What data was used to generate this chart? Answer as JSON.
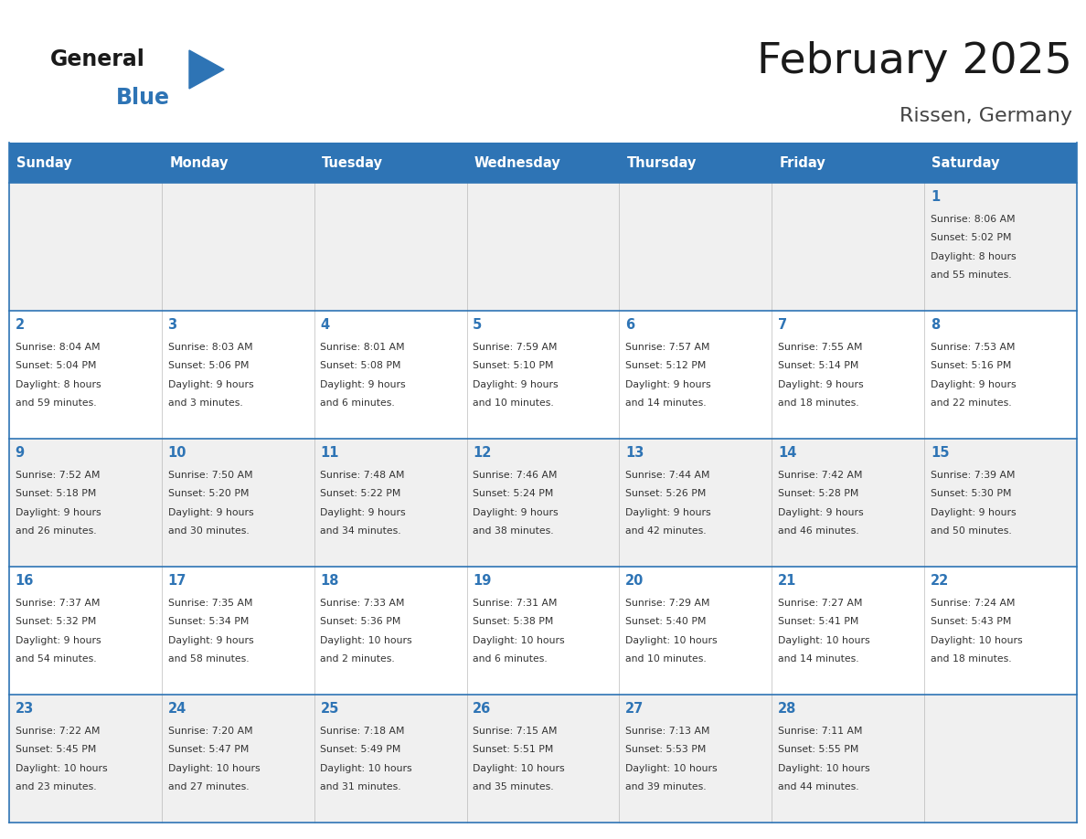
{
  "title": "February 2025",
  "subtitle": "Rissen, Germany",
  "days_of_week": [
    "Sunday",
    "Monday",
    "Tuesday",
    "Wednesday",
    "Thursday",
    "Friday",
    "Saturday"
  ],
  "header_bg": "#2E74B5",
  "header_text": "#FFFFFF",
  "row_bg_odd": "#F0F0F0",
  "row_bg_even": "#FFFFFF",
  "day_number_color": "#2E74B5",
  "text_color": "#333333",
  "border_color": "#2E74B5",
  "cell_divider": "#AAAAAA",
  "calendar_data": [
    [
      null,
      null,
      null,
      null,
      null,
      null,
      {
        "day": "1",
        "sunrise": "8:06 AM",
        "sunset": "5:02 PM",
        "daylight": "8 hours\nand 55 minutes."
      }
    ],
    [
      {
        "day": "2",
        "sunrise": "8:04 AM",
        "sunset": "5:04 PM",
        "daylight": "8 hours\nand 59 minutes."
      },
      {
        "day": "3",
        "sunrise": "8:03 AM",
        "sunset": "5:06 PM",
        "daylight": "9 hours\nand 3 minutes."
      },
      {
        "day": "4",
        "sunrise": "8:01 AM",
        "sunset": "5:08 PM",
        "daylight": "9 hours\nand 6 minutes."
      },
      {
        "day": "5",
        "sunrise": "7:59 AM",
        "sunset": "5:10 PM",
        "daylight": "9 hours\nand 10 minutes."
      },
      {
        "day": "6",
        "sunrise": "7:57 AM",
        "sunset": "5:12 PM",
        "daylight": "9 hours\nand 14 minutes."
      },
      {
        "day": "7",
        "sunrise": "7:55 AM",
        "sunset": "5:14 PM",
        "daylight": "9 hours\nand 18 minutes."
      },
      {
        "day": "8",
        "sunrise": "7:53 AM",
        "sunset": "5:16 PM",
        "daylight": "9 hours\nand 22 minutes."
      }
    ],
    [
      {
        "day": "9",
        "sunrise": "7:52 AM",
        "sunset": "5:18 PM",
        "daylight": "9 hours\nand 26 minutes."
      },
      {
        "day": "10",
        "sunrise": "7:50 AM",
        "sunset": "5:20 PM",
        "daylight": "9 hours\nand 30 minutes."
      },
      {
        "day": "11",
        "sunrise": "7:48 AM",
        "sunset": "5:22 PM",
        "daylight": "9 hours\nand 34 minutes."
      },
      {
        "day": "12",
        "sunrise": "7:46 AM",
        "sunset": "5:24 PM",
        "daylight": "9 hours\nand 38 minutes."
      },
      {
        "day": "13",
        "sunrise": "7:44 AM",
        "sunset": "5:26 PM",
        "daylight": "9 hours\nand 42 minutes."
      },
      {
        "day": "14",
        "sunrise": "7:42 AM",
        "sunset": "5:28 PM",
        "daylight": "9 hours\nand 46 minutes."
      },
      {
        "day": "15",
        "sunrise": "7:39 AM",
        "sunset": "5:30 PM",
        "daylight": "9 hours\nand 50 minutes."
      }
    ],
    [
      {
        "day": "16",
        "sunrise": "7:37 AM",
        "sunset": "5:32 PM",
        "daylight": "9 hours\nand 54 minutes."
      },
      {
        "day": "17",
        "sunrise": "7:35 AM",
        "sunset": "5:34 PM",
        "daylight": "9 hours\nand 58 minutes."
      },
      {
        "day": "18",
        "sunrise": "7:33 AM",
        "sunset": "5:36 PM",
        "daylight": "10 hours\nand 2 minutes."
      },
      {
        "day": "19",
        "sunrise": "7:31 AM",
        "sunset": "5:38 PM",
        "daylight": "10 hours\nand 6 minutes."
      },
      {
        "day": "20",
        "sunrise": "7:29 AM",
        "sunset": "5:40 PM",
        "daylight": "10 hours\nand 10 minutes."
      },
      {
        "day": "21",
        "sunrise": "7:27 AM",
        "sunset": "5:41 PM",
        "daylight": "10 hours\nand 14 minutes."
      },
      {
        "day": "22",
        "sunrise": "7:24 AM",
        "sunset": "5:43 PM",
        "daylight": "10 hours\nand 18 minutes."
      }
    ],
    [
      {
        "day": "23",
        "sunrise": "7:22 AM",
        "sunset": "5:45 PM",
        "daylight": "10 hours\nand 23 minutes."
      },
      {
        "day": "24",
        "sunrise": "7:20 AM",
        "sunset": "5:47 PM",
        "daylight": "10 hours\nand 27 minutes."
      },
      {
        "day": "25",
        "sunrise": "7:18 AM",
        "sunset": "5:49 PM",
        "daylight": "10 hours\nand 31 minutes."
      },
      {
        "day": "26",
        "sunrise": "7:15 AM",
        "sunset": "5:51 PM",
        "daylight": "10 hours\nand 35 minutes."
      },
      {
        "day": "27",
        "sunrise": "7:13 AM",
        "sunset": "5:53 PM",
        "daylight": "10 hours\nand 39 minutes."
      },
      {
        "day": "28",
        "sunrise": "7:11 AM",
        "sunset": "5:55 PM",
        "daylight": "10 hours\nand 44 minutes."
      },
      null
    ]
  ]
}
